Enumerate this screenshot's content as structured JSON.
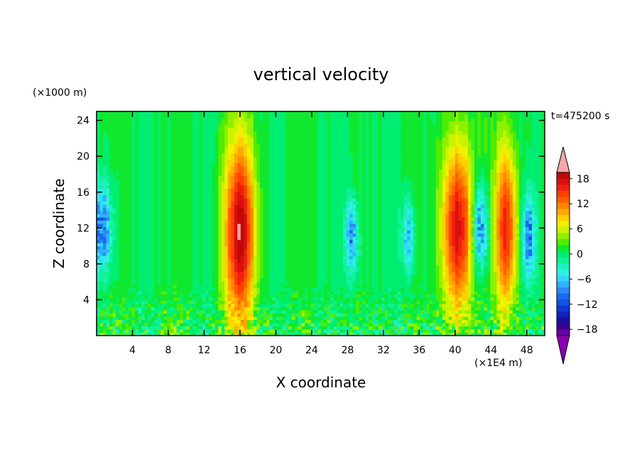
{
  "chart_data": {
    "type": "heatmap",
    "title": "vertical velocity",
    "xlabel": "X coordinate",
    "ylabel": "Z coordinate",
    "x_unit": "(×1E4 m)",
    "y_unit": "(×1000 m)",
    "time_label": "t=475200 s",
    "xlim": [
      0,
      50
    ],
    "ylim": [
      0,
      25
    ],
    "x_ticks": [
      4,
      8,
      12,
      16,
      20,
      24,
      28,
      32,
      36,
      40,
      44,
      48
    ],
    "y_ticks": [
      4,
      8,
      12,
      16,
      20,
      24
    ],
    "x_tick_labels": [
      "4",
      "8",
      "12",
      "16",
      "20",
      "24",
      "28",
      "32",
      "36",
      "40",
      "44",
      "48"
    ],
    "y_tick_labels": [
      "4",
      "8",
      "12",
      "16",
      "20",
      "24"
    ],
    "colorbar": {
      "levels": [
        -21,
        -19.5,
        -18,
        -16.5,
        -15,
        -13.5,
        -12,
        -10.5,
        -9,
        -7.5,
        -6,
        -4.5,
        -3,
        -1.5,
        0,
        1.5,
        3,
        4.5,
        6,
        7.5,
        9,
        10.5,
        12,
        13.5,
        15,
        16.5,
        18,
        19.5,
        21
      ],
      "tick_values": [
        18,
        12,
        6,
        0,
        -6,
        -12,
        -18
      ],
      "tick_labels": [
        "18",
        "12",
        "6",
        "0",
        "−6",
        "−12",
        "−18"
      ],
      "extend": "both",
      "colors": [
        "#6a00a8",
        "#3a008c",
        "#1a0c9e",
        "#1020b8",
        "#1038d0",
        "#1450e4",
        "#1a68f0",
        "#2a88f8",
        "#30b0fc",
        "#30d8f8",
        "#30f0e4",
        "#20f0c0",
        "#10f098",
        "#00ee70",
        "#10e830",
        "#50ec00",
        "#90f000",
        "#c8f400",
        "#f0f000",
        "#ffd000",
        "#ffaa00",
        "#ff8800",
        "#ff6000",
        "#ff4000",
        "#f02010",
        "#d81010",
        "#c00808",
        "#f4a8a8"
      ],
      "extend_colors": {
        "low": "#8a00b0",
        "high": "#f4a8a8"
      }
    },
    "features": {
      "updrafts": [
        {
          "x": 16,
          "z_center": 11.5,
          "x_half_width": 1.8,
          "z_half_height": 13.5,
          "peak_w": 19
        },
        {
          "x": 40.3,
          "z_center": 12,
          "x_half_width": 1.8,
          "z_half_height": 12.5,
          "peak_w": 18
        },
        {
          "x": 45.7,
          "z_center": 12,
          "x_half_width": 1.3,
          "z_half_height": 12,
          "peak_w": 16
        }
      ],
      "downdrafts": [
        {
          "x": 0.6,
          "z_center": 12,
          "x_half_width": 1.2,
          "z_half_height": 6,
          "peak_w": -11
        },
        {
          "x": 28.5,
          "z_center": 11,
          "x_half_width": 0.8,
          "z_half_height": 5,
          "peak_w": -10
        },
        {
          "x": 34.8,
          "z_center": 11,
          "x_half_width": 0.7,
          "z_half_height": 5,
          "peak_w": -9
        },
        {
          "x": 42.8,
          "z_center": 12,
          "x_half_width": 0.9,
          "z_half_height": 6,
          "peak_w": -12
        },
        {
          "x": 48.2,
          "z_center": 11,
          "x_half_width": 0.8,
          "z_half_height": 6,
          "peak_w": -11
        }
      ]
    }
  }
}
